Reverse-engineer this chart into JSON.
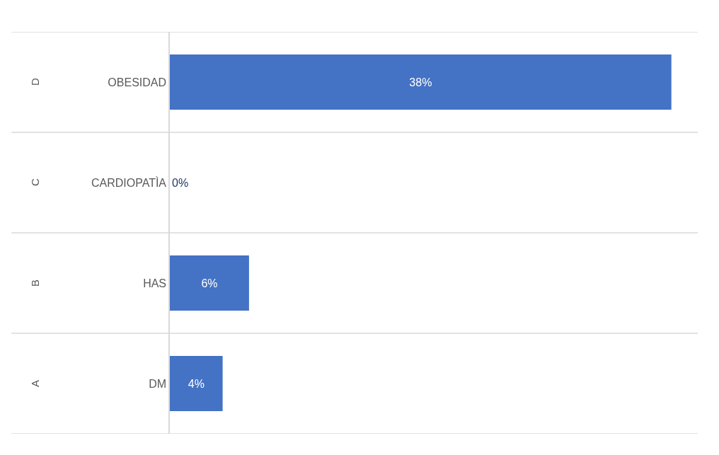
{
  "chart_data": {
    "type": "bar",
    "orientation": "horizontal",
    "categories": [
      "OBESIDAD",
      "CARDIOPATÌA",
      "HAS",
      "DM"
    ],
    "values": [
      38,
      0,
      6,
      4
    ],
    "value_labels": [
      "38%",
      "0%",
      "6%",
      "4%"
    ],
    "color": "#4472c4",
    "annotations": [
      "D",
      "C",
      "B",
      "A"
    ],
    "grid": "y"
  }
}
